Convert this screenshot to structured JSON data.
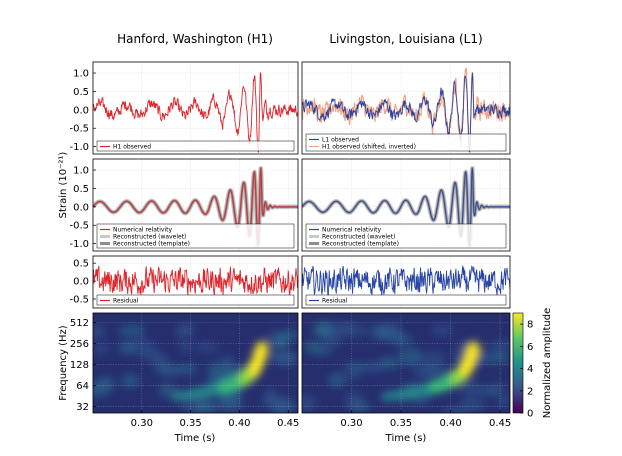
{
  "chart_data": {
    "type": "line",
    "columns": [
      {
        "id": "h1",
        "title": "Hanford, Washington (H1)",
        "color": "#e0242a"
      },
      {
        "id": "l1",
        "title": "Livingston, Louisiana (L1)",
        "color": "#2a46a4"
      }
    ],
    "rows": {
      "row1": {
        "ylabel": "",
        "ylim": [
          -1.2,
          1.3
        ],
        "yticks": [
          "1.0",
          "0.5",
          "0.0",
          "-0.5",
          "-1.0"
        ],
        "ytick_values": [
          1.0,
          0.5,
          0.0,
          -0.5,
          -1.0
        ],
        "legend": {
          "h1": [
            {
              "label": "H1 observed",
              "color": "#e0242a"
            }
          ],
          "l1": [
            {
              "label": "L1 observed",
              "color": "#2a46a4"
            },
            {
              "label": "H1 observed (shifted, inverted)",
              "color": "#f4a582"
            }
          ]
        }
      },
      "row2": {
        "ylabel": "Strain (10⁻²¹)",
        "ylim": [
          -1.2,
          1.3
        ],
        "yticks": [
          "1.0",
          "0.5",
          "0.0",
          "-0.5",
          "-1.0"
        ],
        "ytick_values": [
          1.0,
          0.5,
          0.0,
          -0.5,
          -1.0
        ],
        "legend": {
          "h1": [
            {
              "label": "Numerical relativity",
              "color": "#e0242a"
            },
            {
              "label": "Reconstructed (wavelet)",
              "color": "#c8c8c8"
            },
            {
              "label": "Reconstructed (template)",
              "color": "#8c8c8c"
            }
          ],
          "l1": [
            {
              "label": "Numerical relativity",
              "color": "#2a46a4"
            },
            {
              "label": "Reconstructed (wavelet)",
              "color": "#c8c8c8"
            },
            {
              "label": "Reconstructed (template)",
              "color": "#8c8c8c"
            }
          ]
        }
      },
      "row3": {
        "ylim": [
          -0.75,
          0.7
        ],
        "yticks": [
          "0.5",
          "0.0",
          "-0.5"
        ],
        "ytick_values": [
          0.5,
          0.0,
          -0.5
        ],
        "legend": {
          "h1": [
            {
              "label": "Residual",
              "color": "#e0242a"
            }
          ],
          "l1": [
            {
              "label": "Residual",
              "color": "#2a46a4"
            }
          ]
        }
      },
      "spectrogram": {
        "type": "heatmap",
        "ylabel": "Frequency (Hz)",
        "ylim_hz": [
          26,
          700
        ],
        "yscale": "log",
        "yticks": [
          "512",
          "256",
          "128",
          "64",
          "32"
        ],
        "ytick_values": [
          512,
          256,
          128,
          64,
          32
        ],
        "colorbar_label": "Normalized amplitude",
        "colorbar_ticks": [
          "0",
          "2",
          "4",
          "6",
          "8"
        ],
        "colorbar_range": [
          0,
          9
        ]
      }
    },
    "x": {
      "label": "Time (s)",
      "xlim": [
        0.25,
        0.46
      ],
      "ticks": [
        "0.30",
        "0.35",
        "0.40",
        "0.45"
      ],
      "tick_values": [
        0.3,
        0.35,
        0.4,
        0.45
      ]
    },
    "signal_model": {
      "t_merger": 0.423,
      "description_values": {
        "noise_amplitude_strain": 0.15,
        "peak_strain": 1.0,
        "chirp_start_freq_hz": 35,
        "chirp_end_freq_hz": 250
      }
    }
  }
}
